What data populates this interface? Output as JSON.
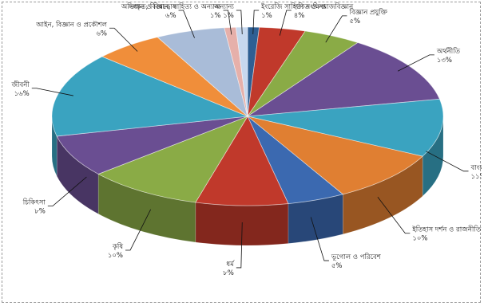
{
  "chart_data": {
    "type": "pie",
    "title": "",
    "style": "3d-exploded-ring",
    "label_script": "Bengali (illegible in source)",
    "slices": [
      {
        "label": "ইংরেজি সাহিত্য সংক্ষিপ্ত",
        "value_text": "১%",
        "value": 1,
        "color": "#2e5f93"
      },
      {
        "label": "গণিত ও সমাজবিজ্ঞান",
        "value_text": "৪%",
        "value": 4,
        "color": "#c0392b"
      },
      {
        "label": "বিজ্ঞান প্রযুক্তি",
        "value_text": "৫%",
        "value": 5,
        "color": "#8aab46"
      },
      {
        "label": "অর্থনীতি",
        "value_text": "১৩%",
        "value": 13,
        "color": "#6a4e92"
      },
      {
        "label": "বাংলা সাহিত্য",
        "value_text": "১১%",
        "value": 11,
        "color": "#3aa3c0"
      },
      {
        "label": "ইতিহাস দর্শন ও রাজনীতি",
        "value_text": "১০%",
        "value": 10,
        "color": "#e07f32"
      },
      {
        "label": "ভূগোল ও পরিবেশ",
        "value_text": "৫%",
        "value": 5,
        "color": "#3b69b0"
      },
      {
        "label": "ধর্ম",
        "value_text": "৮%",
        "value": 8,
        "color": "#c0392b"
      },
      {
        "label": "কৃষি",
        "value_text": "১০%",
        "value": 10,
        "color": "#8aab46"
      },
      {
        "label": "চিকিৎসা",
        "value_text": "৮%",
        "value": 8,
        "color": "#6a4e92"
      },
      {
        "label": "জীবনী",
        "value_text": "১৬%",
        "value": 16,
        "color": "#3aa3c0"
      },
      {
        "label": "আইন, বিজ্ঞান ও প্রকৌশল",
        "value_text": "৬%",
        "value": 6,
        "color": "#f08e3a"
      },
      {
        "label": "অভিধান ও বিশ্বকোষ",
        "value_text": "৬%",
        "value": 6,
        "color": "#a9bcd8"
      },
      {
        "label": "সংস্কৃত, বিজ্ঞান, সাহিত্য ও অন্যান্য",
        "value_text": "১%",
        "value": 1,
        "color": "#e6b0aa"
      },
      {
        "label": "অন্যান্য",
        "value_text": "১%",
        "value": 1,
        "color": "#c7d8ee"
      }
    ]
  }
}
